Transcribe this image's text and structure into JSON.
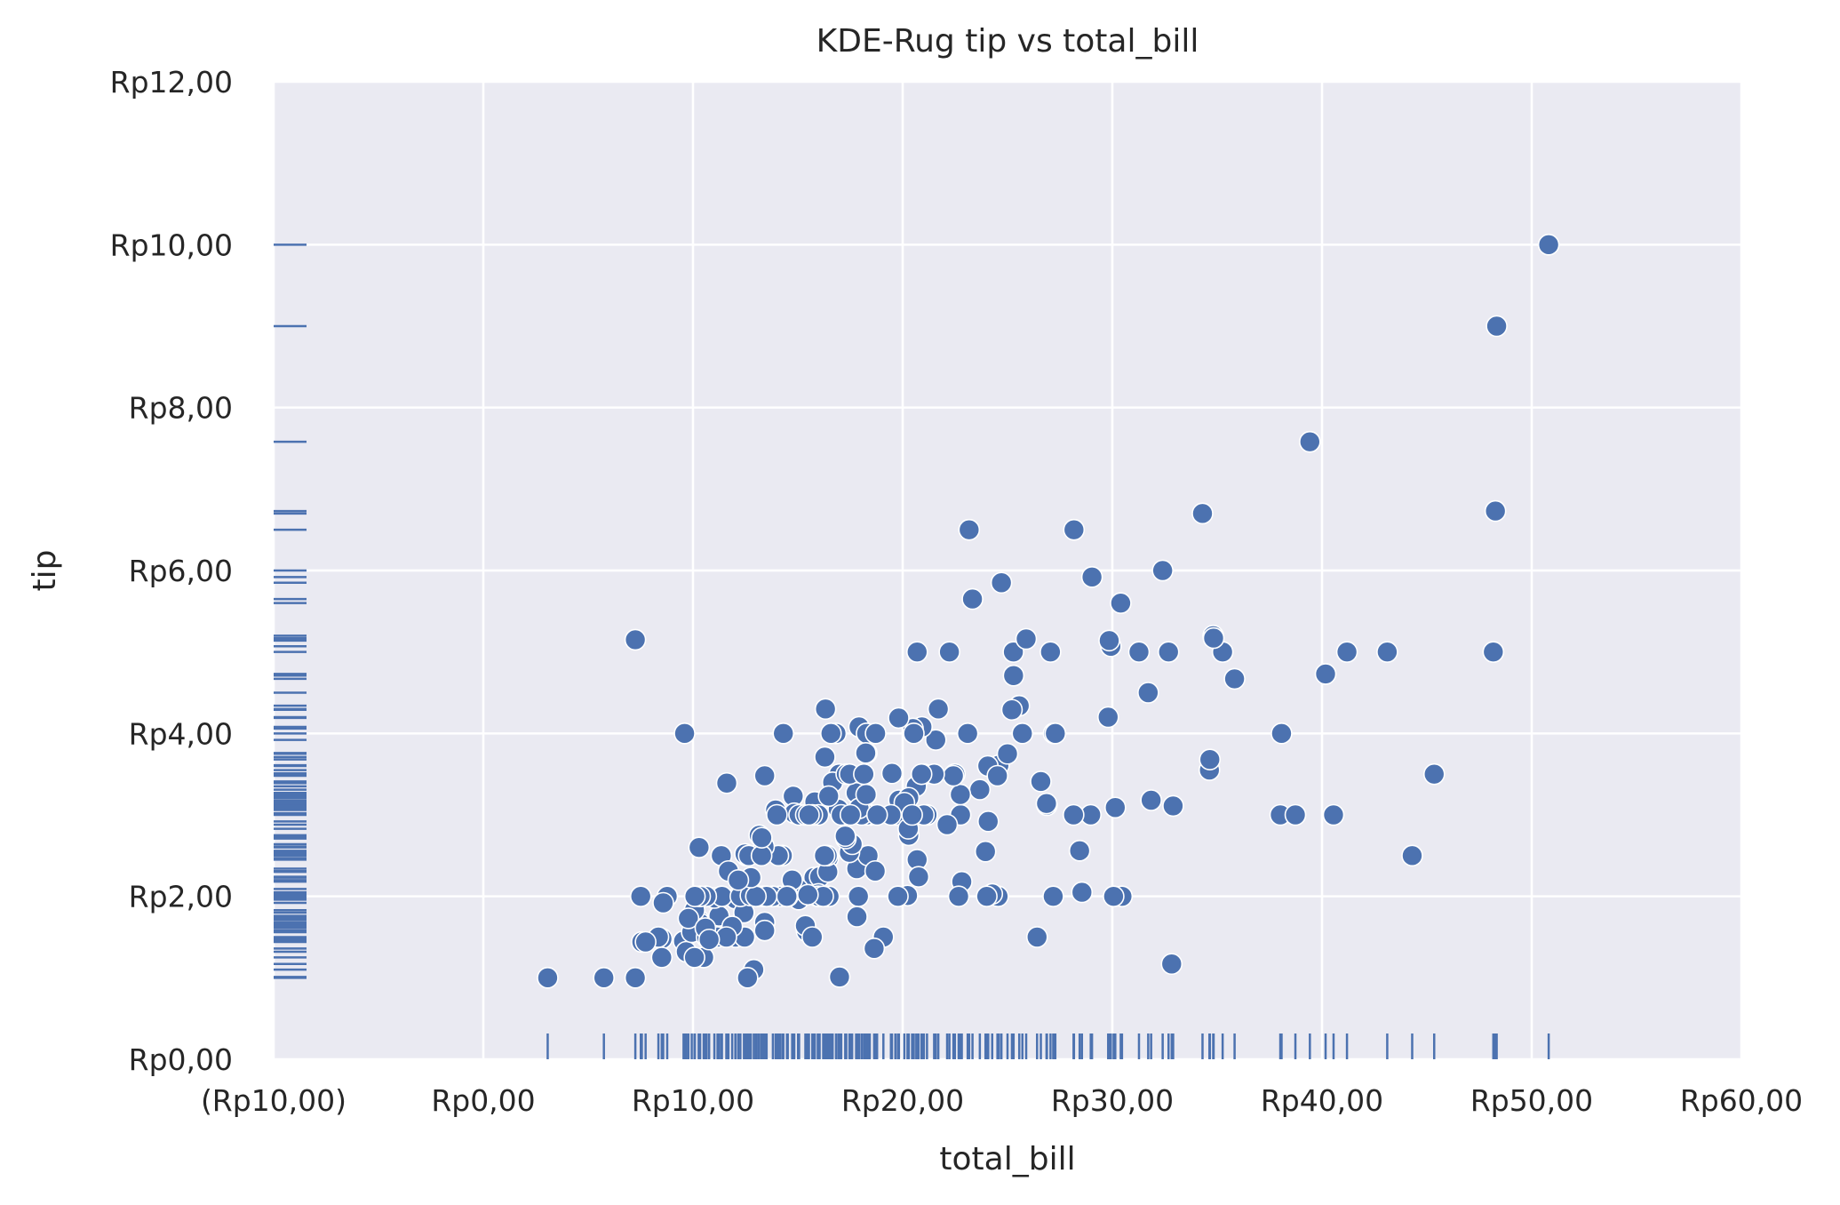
{
  "chart_data": {
    "type": "scatter",
    "title": "KDE-Rug tip vs total_bill",
    "xlabel": "total_bill",
    "ylabel": "tip",
    "xlim": [
      -10,
      60
    ],
    "ylim": [
      0,
      12
    ],
    "x_ticks": [
      -10,
      0,
      10,
      20,
      30,
      40,
      50,
      60
    ],
    "y_ticks": [
      0,
      2,
      4,
      6,
      8,
      10,
      12
    ],
    "x_tick_labels": [
      "(Rp10,00)",
      "Rp0,00",
      "Rp10,00",
      "Rp20,00",
      "Rp30,00",
      "Rp40,00",
      "Rp50,00",
      "Rp60,00"
    ],
    "y_tick_labels": [
      "Rp0,00",
      "Rp2,00",
      "Rp4,00",
      "Rp6,00",
      "Rp8,00",
      "Rp10,00",
      "Rp12,00"
    ],
    "grid": true,
    "rug": true,
    "marker_color": "#4c72b0",
    "background_color": "#eaeaf2",
    "grid_color": "#ffffff",
    "series": [
      {
        "x": [
          16.99,
          10.34,
          21.01,
          23.68,
          24.59,
          25.29,
          8.77,
          26.88,
          15.04,
          14.78,
          10.27,
          35.26,
          15.42,
          18.43,
          14.83,
          21.58,
          10.33,
          16.29,
          16.97,
          20.65,
          17.92,
          20.29,
          15.77,
          39.42,
          19.82,
          17.81,
          13.37,
          12.69,
          21.7,
          19.65,
          9.55,
          18.35,
          15.06,
          20.69,
          17.78,
          24.06,
          16.31,
          16.93,
          18.69,
          31.27,
          16.04,
          17.46,
          13.94,
          9.68,
          30.4,
          18.29,
          22.23,
          32.4,
          28.55,
          18.04,
          12.54,
          10.29,
          34.81,
          9.94,
          25.56,
          19.49,
          38.01,
          26.41,
          11.24,
          48.27,
          20.29,
          13.81,
          11.02,
          18.29,
          17.59,
          20.08,
          16.45,
          3.07,
          20.23,
          15.01,
          12.02,
          17.07,
          26.86,
          25.28,
          14.73,
          10.51,
          17.92,
          27.2,
          22.76,
          17.29,
          19.44,
          16.66,
          10.07,
          32.68,
          15.98,
          34.83,
          13.03,
          18.28,
          24.71,
          21.16,
          28.97,
          22.49,
          5.75,
          16.32,
          22.75,
          40.17,
          27.28,
          12.03,
          21.01,
          12.46,
          11.35,
          15.38,
          44.3,
          22.42,
          20.92,
          15.36,
          20.49,
          25.21,
          18.24,
          14.31,
          14.0,
          7.25,
          38.07,
          23.95,
          25.71,
          17.31,
          29.93,
          10.65,
          12.43,
          24.08,
          11.69,
          13.42,
          14.26,
          15.95,
          12.48,
          29.8,
          8.52,
          14.52,
          11.38,
          22.82,
          19.08,
          20.27,
          11.17,
          12.26,
          18.26,
          8.51,
          10.33,
          14.15,
          16.0,
          13.16,
          17.47,
          34.3,
          41.19,
          27.05,
          16.43,
          8.35,
          18.64,
          11.87,
          9.78,
          7.51,
          14.07,
          13.13,
          17.26,
          24.55,
          19.77,
          29.85,
          48.17,
          25.0,
          13.39,
          16.49,
          21.5,
          12.66,
          16.21,
          13.81,
          17.51,
          24.52,
          20.76,
          31.71,
          10.59,
          10.63,
          50.81,
          15.81,
          7.25,
          31.85,
          16.82,
          32.9,
          17.89,
          14.48,
          9.6,
          34.63,
          34.65,
          23.33,
          45.35,
          23.17,
          40.55,
          20.69,
          20.9,
          30.46,
          18.15,
          23.1,
          15.69,
          19.81,
          28.44,
          15.48,
          16.58,
          7.56,
          10.34,
          43.11,
          13.0,
          13.51,
          18.71,
          12.74,
          13.0,
          16.4,
          20.53,
          16.47,
          26.59,
          38.73,
          24.27,
          12.76,
          30.06,
          25.89,
          48.33,
          13.27,
          28.17,
          12.9,
          28.15,
          11.59,
          7.74,
          30.14,
          12.16,
          13.42,
          8.58,
          15.98,
          13.42,
          16.27,
          10.09,
          20.45,
          13.28,
          22.12,
          24.01,
          15.69,
          11.61,
          10.77,
          15.53,
          10.07,
          12.6,
          32.83,
          35.83,
          29.03,
          27.18,
          22.67,
          17.82,
          18.78
        ],
        "y": [
          1.01,
          1.66,
          3.5,
          3.31,
          3.61,
          4.71,
          2.0,
          3.12,
          1.96,
          3.23,
          1.71,
          5.0,
          1.57,
          3.0,
          3.02,
          3.92,
          1.67,
          3.71,
          3.5,
          3.35,
          4.08,
          2.75,
          2.23,
          7.58,
          3.18,
          2.34,
          2.0,
          2.0,
          4.3,
          3.0,
          1.45,
          2.5,
          3.0,
          2.45,
          3.27,
          3.6,
          2.0,
          3.07,
          2.31,
          5.0,
          2.24,
          2.54,
          3.06,
          1.32,
          5.6,
          3.0,
          5.0,
          6.0,
          2.05,
          3.0,
          2.5,
          2.6,
          5.2,
          1.56,
          4.34,
          3.51,
          3.0,
          1.5,
          1.76,
          6.73,
          3.21,
          2.0,
          1.98,
          3.76,
          2.64,
          3.15,
          2.47,
          1.0,
          2.01,
          2.09,
          1.97,
          3.0,
          3.14,
          5.0,
          2.2,
          1.25,
          3.08,
          4.0,
          3.0,
          2.71,
          3.0,
          3.4,
          1.83,
          5.0,
          2.03,
          5.17,
          2.0,
          4.0,
          5.85,
          3.0,
          3.0,
          3.5,
          1.0,
          4.3,
          3.25,
          4.73,
          4.0,
          1.5,
          3.0,
          1.5,
          2.5,
          3.0,
          2.5,
          3.48,
          4.08,
          1.64,
          4.06,
          4.29,
          3.76,
          4.0,
          3.0,
          1.0,
          4.0,
          2.55,
          4.0,
          3.5,
          5.07,
          1.5,
          1.8,
          2.92,
          2.31,
          1.68,
          2.5,
          2.0,
          2.52,
          4.2,
          1.48,
          2.0,
          2.0,
          2.18,
          1.5,
          2.83,
          1.5,
          2.0,
          3.25,
          1.25,
          2.0,
          2.0,
          2.0,
          2.75,
          3.5,
          6.7,
          5.0,
          5.0,
          2.3,
          1.5,
          1.36,
          1.63,
          1.73,
          2.0,
          2.5,
          2.0,
          2.74,
          2.0,
          2.0,
          5.14,
          5.0,
          3.75,
          2.61,
          2.0,
          3.5,
          2.5,
          2.0,
          2.0,
          3.0,
          3.48,
          2.24,
          4.5,
          1.61,
          2.0,
          10.0,
          3.16,
          5.15,
          3.18,
          4.0,
          3.11,
          2.0,
          2.0,
          4.0,
          3.55,
          3.68,
          5.65,
          3.5,
          6.5,
          3.0,
          5.0,
          3.5,
          2.0,
          3.5,
          4.0,
          1.5,
          4.19,
          2.56,
          2.02,
          4.0,
          1.44,
          2.0,
          5.0,
          2.0,
          2.0,
          4.0,
          2.01,
          2.0,
          2.5,
          4.0,
          3.23,
          3.41,
          3.0,
          2.03,
          2.23,
          2.0,
          5.16,
          9.0,
          2.5,
          6.5,
          1.1,
          3.0,
          1.5,
          1.44,
          3.09,
          2.2,
          3.48,
          1.92,
          3.0,
          1.58,
          2.5,
          2.0,
          3.0,
          2.72,
          2.88,
          2.0,
          3.0,
          3.39,
          1.47,
          3.0,
          1.25,
          1.0,
          1.17,
          4.67,
          5.92,
          2.0,
          2.0,
          1.75,
          3.0
        ]
      }
    ]
  }
}
